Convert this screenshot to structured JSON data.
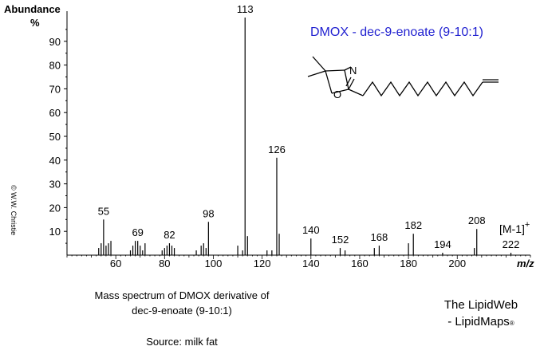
{
  "chart_data": {
    "type": "bar",
    "title": "DMOX  -  dec-9-enoate  (9-10:1)",
    "ylabel": "Abundance",
    "yunit": "%",
    "xlabel": "m/z",
    "xlim": [
      40,
      230
    ],
    "ylim": [
      0,
      100
    ],
    "xticks": [
      60,
      80,
      100,
      120,
      140,
      160,
      180,
      200
    ],
    "yticks": [
      10,
      20,
      30,
      40,
      50,
      60,
      70,
      80,
      90
    ],
    "molecular_ion_label": "[M-1]",
    "molecular_ion_sup": "+",
    "peaks": [
      {
        "mz": 53,
        "value": 3
      },
      {
        "mz": 54,
        "value": 5
      },
      {
        "mz": 55,
        "value": 15,
        "label": "55"
      },
      {
        "mz": 56,
        "value": 4
      },
      {
        "mz": 57,
        "value": 5
      },
      {
        "mz": 58,
        "value": 6
      },
      {
        "mz": 66,
        "value": 2
      },
      {
        "mz": 67,
        "value": 4
      },
      {
        "mz": 68,
        "value": 6
      },
      {
        "mz": 69,
        "value": 6,
        "label": "69"
      },
      {
        "mz": 70,
        "value": 4
      },
      {
        "mz": 71,
        "value": 2
      },
      {
        "mz": 72,
        "value": 5
      },
      {
        "mz": 79,
        "value": 2
      },
      {
        "mz": 80,
        "value": 3
      },
      {
        "mz": 81,
        "value": 4
      },
      {
        "mz": 82,
        "value": 5,
        "label": "82"
      },
      {
        "mz": 83,
        "value": 4
      },
      {
        "mz": 84,
        "value": 3
      },
      {
        "mz": 93,
        "value": 2
      },
      {
        "mz": 95,
        "value": 4
      },
      {
        "mz": 96,
        "value": 5
      },
      {
        "mz": 97,
        "value": 3
      },
      {
        "mz": 98,
        "value": 14,
        "label": "98"
      },
      {
        "mz": 110,
        "value": 4
      },
      {
        "mz": 112,
        "value": 2
      },
      {
        "mz": 113,
        "value": 100,
        "label": "113"
      },
      {
        "mz": 114,
        "value": 8
      },
      {
        "mz": 122,
        "value": 2
      },
      {
        "mz": 124,
        "value": 2
      },
      {
        "mz": 126,
        "value": 41,
        "label": "126"
      },
      {
        "mz": 127,
        "value": 9
      },
      {
        "mz": 140,
        "value": 7,
        "label": "140"
      },
      {
        "mz": 152,
        "value": 3,
        "label": "152"
      },
      {
        "mz": 154,
        "value": 2
      },
      {
        "mz": 166,
        "value": 3
      },
      {
        "mz": 168,
        "value": 4,
        "label": "168"
      },
      {
        "mz": 180,
        "value": 5
      },
      {
        "mz": 182,
        "value": 9,
        "label": "182"
      },
      {
        "mz": 194,
        "value": 1,
        "label": "194"
      },
      {
        "mz": 207,
        "value": 3
      },
      {
        "mz": 208,
        "value": 11,
        "label": "208"
      },
      {
        "mz": 222,
        "value": 1,
        "label": "222"
      }
    ]
  },
  "structure": {
    "n_label": "N",
    "o_label": "O"
  },
  "captions": {
    "line1": "Mass spectrum of DMOX derivative of",
    "line2": "dec-9-enoate (9-10:1)",
    "source": "Source:  milk fat"
  },
  "credit": {
    "line1": "The LipidWeb",
    "line2": "- LipidMaps",
    "registered": "®"
  },
  "copyright": "© W.W. Christie"
}
